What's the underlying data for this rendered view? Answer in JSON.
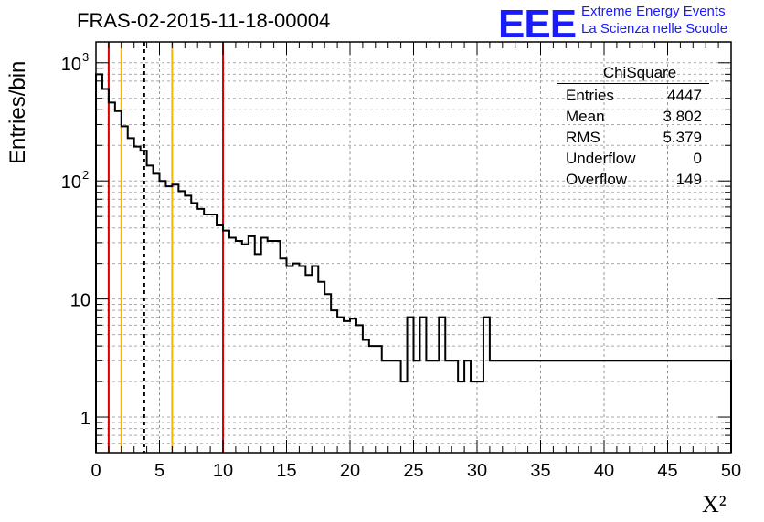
{
  "header": {
    "title": "FRAS-02-2015-11-18-00004",
    "logo_text": "EEE",
    "logo_line1": "Extreme Energy Events",
    "logo_line2": "La Scienza nelle Scuole",
    "logo_color": "#1a1aff"
  },
  "stats_box": {
    "title": "ChiSquare",
    "rows": [
      {
        "label": "Entries",
        "value": "4447"
      },
      {
        "label": "Mean",
        "value": "3.802"
      },
      {
        "label": "RMS",
        "value": "5.379"
      },
      {
        "label": "Underflow",
        "value": "0"
      },
      {
        "label": "Overflow",
        "value": "149"
      }
    ]
  },
  "chart_data": {
    "type": "histogram",
    "ylabel": "Entries/bin",
    "xlabel": "X²",
    "xlim": [
      0,
      50
    ],
    "ylim": [
      0.5,
      1500
    ],
    "yscale": "log",
    "grid": true,
    "bin_width": 0.5,
    "x_ticks": [
      "0",
      "5",
      "10",
      "15",
      "20",
      "25",
      "30",
      "35",
      "40",
      "45",
      "50"
    ],
    "y_ticks": [
      {
        "value": 1,
        "label": "1"
      },
      {
        "value": 10,
        "label": "10"
      },
      {
        "value": 100,
        "label": "10",
        "exp": "2"
      },
      {
        "value": 1000,
        "label": "10",
        "exp": "3"
      }
    ],
    "values": [
      800,
      600,
      460,
      390,
      290,
      230,
      195,
      180,
      135,
      115,
      100,
      90,
      93,
      82,
      75,
      65,
      58,
      52,
      52,
      42,
      38,
      33,
      31,
      29,
      34,
      24,
      33,
      31,
      31,
      22,
      19,
      20,
      19,
      16,
      19,
      14,
      11,
      8,
      7,
      6.5,
      6.8,
      6,
      4.5,
      4,
      4,
      3,
      3,
      3,
      2,
      7,
      3,
      7,
      3,
      3,
      7,
      3,
      3,
      2,
      3,
      2,
      2,
      7,
      3,
      3,
      3,
      3,
      3,
      3,
      3,
      3,
      3,
      3,
      3,
      3,
      3,
      3,
      3,
      3,
      3,
      3,
      3,
      3,
      3,
      3,
      3,
      3,
      3,
      3,
      3,
      3,
      3,
      3,
      3,
      3,
      3,
      3,
      3,
      3,
      3,
      3
    ],
    "reference_lines": [
      {
        "x": 1,
        "color": "#dd0000",
        "style": "solid"
      },
      {
        "x": 2,
        "color": "#f0b800",
        "style": "solid"
      },
      {
        "x": 3.802,
        "color": "#000000",
        "style": "dashed"
      },
      {
        "x": 6,
        "color": "#f0b800",
        "style": "solid"
      },
      {
        "x": 10,
        "color": "#dd0000",
        "style": "solid"
      }
    ]
  }
}
